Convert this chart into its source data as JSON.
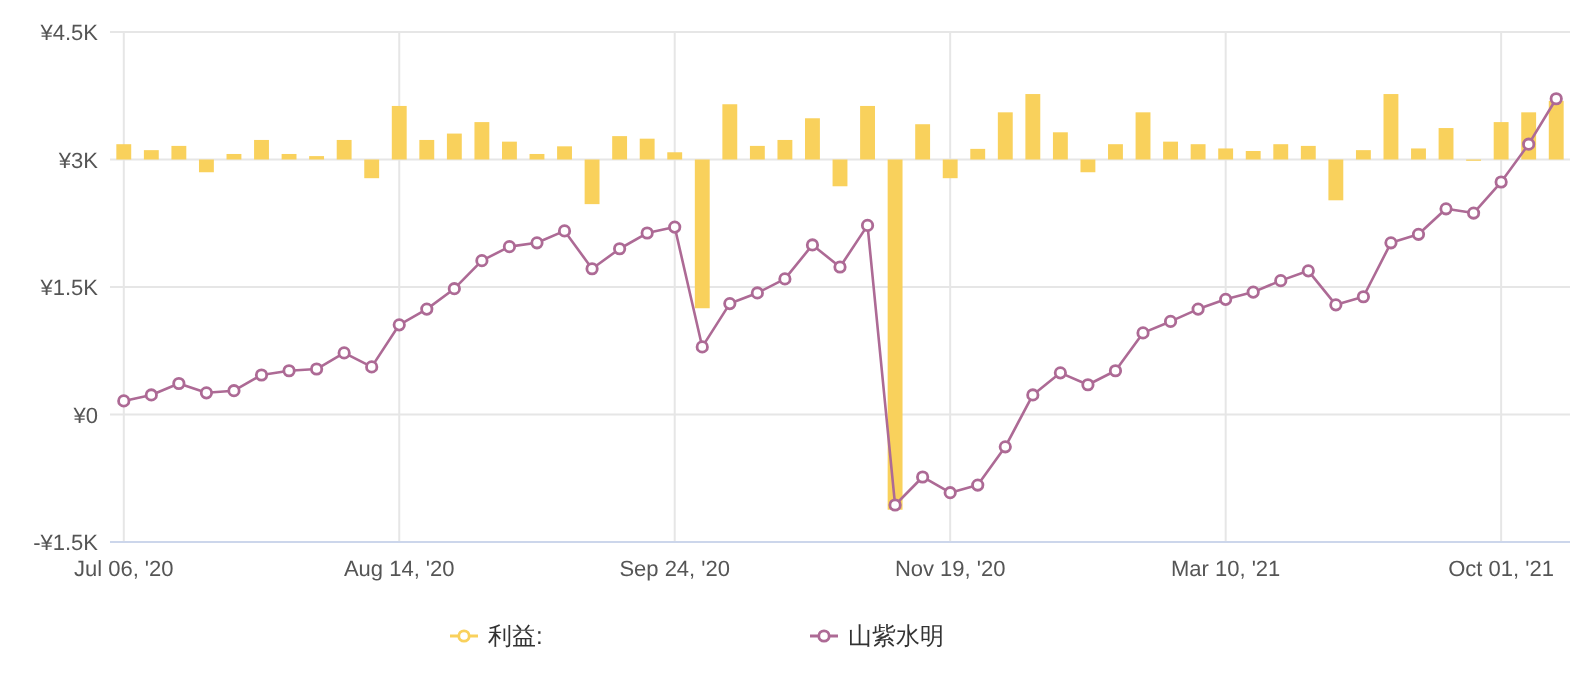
{
  "chart_data": {
    "type": "line",
    "categories": [
      "Jul 06, '20",
      null,
      null,
      null,
      null,
      null,
      null,
      null,
      null,
      null,
      "Aug 14, '20",
      null,
      null,
      null,
      null,
      null,
      null,
      null,
      null,
      null,
      "Sep 24, '20",
      null,
      null,
      null,
      null,
      null,
      null,
      null,
      null,
      null,
      "Nov 19, '20",
      null,
      null,
      null,
      null,
      null,
      null,
      null,
      null,
      null,
      "Mar 10, '21",
      null,
      null,
      null,
      null,
      null,
      null,
      null,
      null,
      null,
      "Oct 01, '21",
      null,
      null
    ],
    "series": [
      {
        "name": "利益:",
        "type": "bar",
        "color": "#f9d15c",
        "base": [
          3000,
          3000,
          3000,
          3000,
          3000,
          3000,
          3000,
          3000,
          3000,
          3000,
          3000,
          3000,
          3000,
          3000,
          3000,
          3000,
          3000,
          3000,
          3000,
          3000,
          3000,
          3000,
          3000,
          3000,
          3000,
          3000,
          3000,
          3000,
          3000,
          3000,
          3000,
          3000,
          3000,
          3000,
          3000,
          3000,
          3000,
          3000,
          3000,
          3000,
          3000,
          3000,
          3000,
          3000,
          3000,
          3000,
          3000,
          3000,
          3000,
          3000,
          3000,
          3000,
          3000
        ],
        "values": [
          180,
          110,
          160,
          -150,
          65,
          230,
          65,
          40,
          230,
          -220,
          630,
          230,
          305,
          440,
          210,
          65,
          155,
          -525,
          275,
          245,
          85,
          -1750,
          650,
          160,
          230,
          485,
          -315,
          630,
          -4120,
          415,
          -220,
          125,
          555,
          770,
          320,
          -150,
          180,
          555,
          210,
          180,
          130,
          100,
          180,
          160,
          -480,
          110,
          770,
          130,
          370,
          -15,
          440,
          555,
          690
        ]
      },
      {
        "name": "山紫水明",
        "color": "#ad6a95",
        "values": [
          160,
          230,
          365,
          255,
          280,
          465,
          515,
          535,
          725,
          560,
          1055,
          1240,
          1480,
          1810,
          1975,
          2020,
          2160,
          1715,
          1950,
          2135,
          2205,
          795,
          1305,
          1430,
          1595,
          1995,
          1735,
          2225,
          -1065,
          -735,
          -920,
          -830,
          -380,
          230,
          490,
          350,
          515,
          960,
          1095,
          1240,
          1355,
          1440,
          1575,
          1690,
          1290,
          1385,
          2020,
          2120,
          2420,
          2370,
          2735,
          3180,
          3715
        ]
      }
    ],
    "ylim": [
      -1500,
      4500
    ],
    "yticks": [
      {
        "value": -1500,
        "label": "-¥1.5K"
      },
      {
        "value": 0,
        "label": "¥0"
      },
      {
        "value": 1500,
        "label": "¥1.5K"
      },
      {
        "value": 3000,
        "label": "¥3K"
      },
      {
        "value": 4500,
        "label": "¥4.5K"
      }
    ],
    "grid": true,
    "legend": "bottom",
    "marker": "circle"
  }
}
